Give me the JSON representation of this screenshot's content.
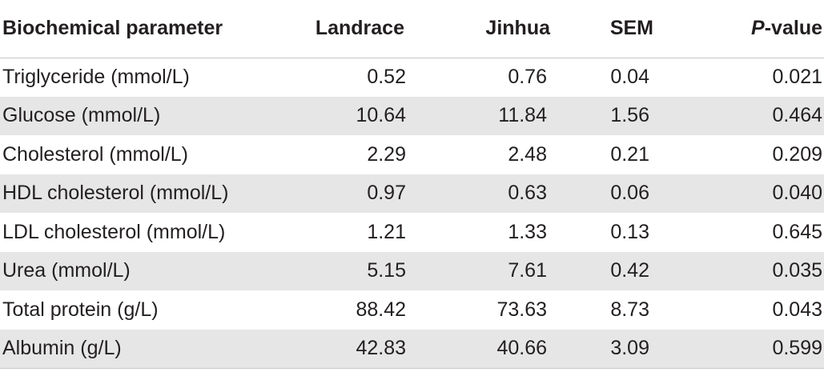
{
  "table": {
    "headers": {
      "parameter": "Biochemical parameter",
      "landrace": "Landrace",
      "jinhua": "Jinhua",
      "sem": "SEM",
      "p_prefix": "P",
      "p_suffix": "-value"
    },
    "rows": [
      {
        "parameter": "Triglyceride (mmol/L)",
        "landrace": "0.52",
        "jinhua": "0.76",
        "sem": "0.04",
        "p": "0.021"
      },
      {
        "parameter": "Glucose (mmol/L)",
        "landrace": "10.64",
        "jinhua": "11.84",
        "sem": "1.56",
        "p": "0.464"
      },
      {
        "parameter": "Cholesterol (mmol/L)",
        "landrace": "2.29",
        "jinhua": "2.48",
        "sem": "0.21",
        "p": "0.209"
      },
      {
        "parameter": "HDL cholesterol (mmol/L)",
        "landrace": "0.97",
        "jinhua": "0.63",
        "sem": "0.06",
        "p": "0.040"
      },
      {
        "parameter": "LDL cholesterol (mmol/L)",
        "landrace": "1.21",
        "jinhua": "1.33",
        "sem": "0.13",
        "p": "0.645"
      },
      {
        "parameter": "Urea (mmol/L)",
        "landrace": "5.15",
        "jinhua": "7.61",
        "sem": "0.42",
        "p": "0.035"
      },
      {
        "parameter": "Total protein (g/L)",
        "landrace": "88.42",
        "jinhua": "73.63",
        "sem": "8.73",
        "p": "0.043"
      },
      {
        "parameter": "Albumin (g/L)",
        "landrace": "42.83",
        "jinhua": "40.66",
        "sem": "3.09",
        "p": "0.599"
      }
    ]
  },
  "colors": {
    "row_shade": "#e6e6e6",
    "text": "#231f20",
    "rule": "#c8c8c8"
  }
}
